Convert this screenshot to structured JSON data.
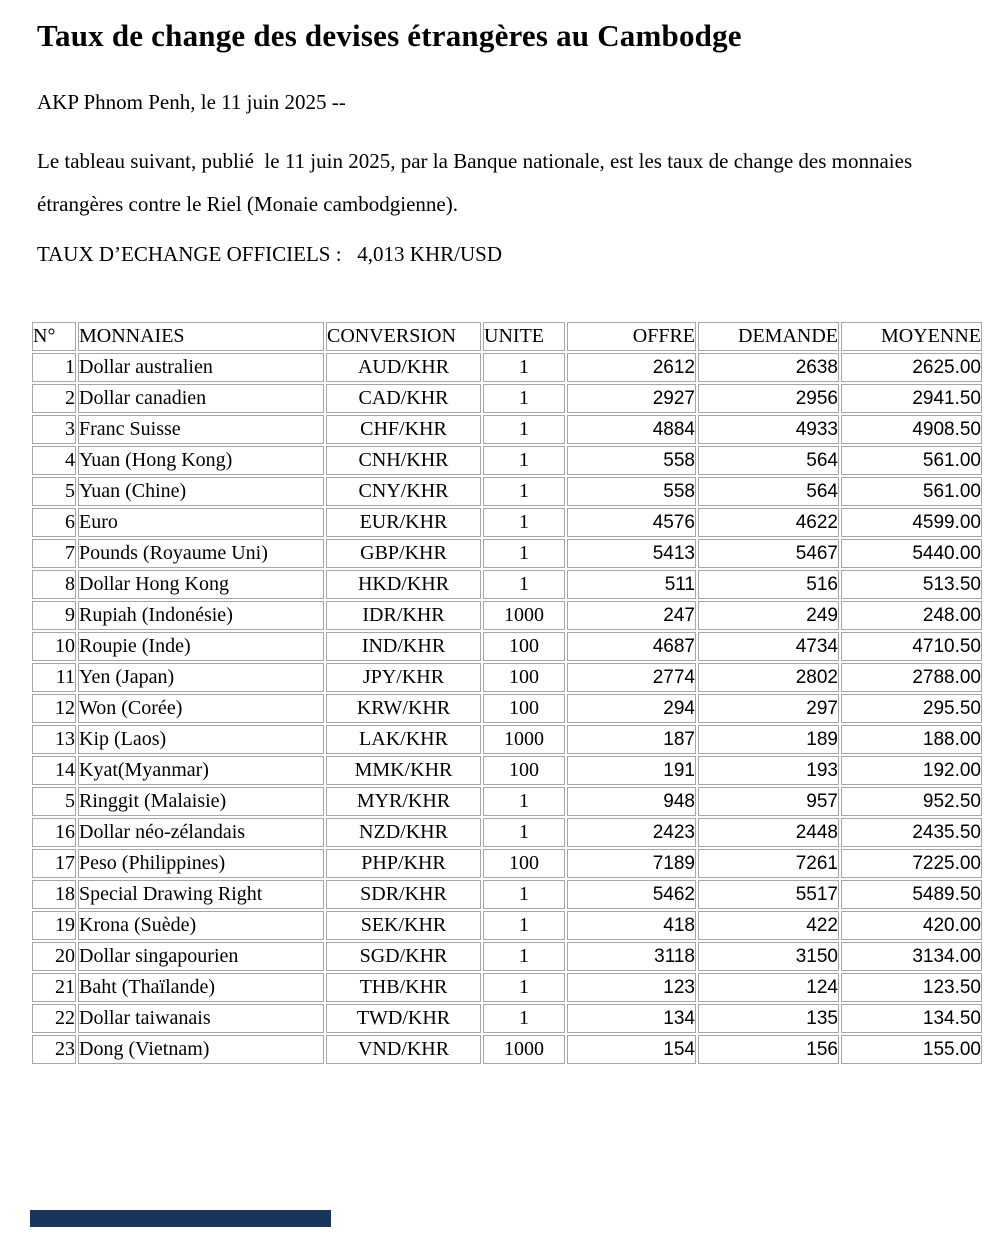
{
  "page": {
    "title": "Taux de change des devises étrangères au Cambodge",
    "byline": "AKP Phnom Penh, le 11 juin 2025 --",
    "intro": "Le tableau suivant, publié  le 11 juin 2025, par la Banque nationale, est les taux de change des monnaies étrangères contre le Riel (Monaie cambodgienne).",
    "official_rates_line": "TAUX D’ECHANGE OFFICIELS :   4,013 KHR/USD"
  },
  "table": {
    "headers": [
      "N°",
      "MONNAIES",
      "CONVERSION",
      "UNITE",
      "OFFRE",
      "DEMANDE",
      "MOYENNE"
    ],
    "rows": [
      [
        "1",
        "Dollar australien",
        "AUD/KHR",
        "1",
        "2612",
        "2638",
        "2625.00"
      ],
      [
        "2",
        "Dollar canadien",
        "CAD/KHR",
        "1",
        "2927",
        "2956",
        "2941.50"
      ],
      [
        "3",
        "Franc Suisse",
        "CHF/KHR",
        "1",
        "4884",
        "4933",
        "4908.50"
      ],
      [
        "4",
        "Yuan (Hong Kong)",
        "CNH/KHR",
        "1",
        "558",
        "564",
        "561.00"
      ],
      [
        "5",
        "Yuan (Chine)",
        "CNY/KHR",
        "1",
        "558",
        "564",
        "561.00"
      ],
      [
        "6",
        "Euro",
        "EUR/KHR",
        "1",
        "4576",
        "4622",
        "4599.00"
      ],
      [
        "7",
        "Pounds (Royaume Uni)",
        "GBP/KHR",
        "1",
        "5413",
        "5467",
        "5440.00"
      ],
      [
        "8",
        "Dollar Hong Kong",
        "HKD/KHR",
        "1",
        "511",
        "516",
        "513.50"
      ],
      [
        "9",
        "Rupiah (Indonésie)",
        "IDR/KHR",
        "1000",
        "247",
        "249",
        "248.00"
      ],
      [
        "10",
        "Roupie (Inde)",
        "IND/KHR",
        "100",
        "4687",
        "4734",
        "4710.50"
      ],
      [
        "11",
        "Yen (Japan)",
        "JPY/KHR",
        "100",
        "2774",
        "2802",
        "2788.00"
      ],
      [
        "12",
        "Won (Corée)",
        "KRW/KHR",
        "100",
        "294",
        "297",
        "295.50"
      ],
      [
        "13",
        "Kip (Laos)",
        "LAK/KHR",
        "1000",
        "187",
        "189",
        "188.00"
      ],
      [
        "14",
        "Kyat(Myanmar)",
        "MMK/KHR",
        "100",
        "191",
        "193",
        "192.00"
      ],
      [
        "5",
        "Ringgit (Malaisie)",
        "MYR/KHR",
        "1",
        "948",
        "957",
        "952.50"
      ],
      [
        "16",
        "Dollar néo-zélandais",
        "NZD/KHR",
        "1",
        "2423",
        "2448",
        "2435.50"
      ],
      [
        "17",
        "Peso (Philippines)",
        "PHP/KHR",
        "100",
        "7189",
        "7261",
        "7225.00"
      ],
      [
        "18",
        "Special Drawing Right",
        "SDR/KHR",
        "1",
        "5462",
        "5517",
        "5489.50"
      ],
      [
        "19",
        "Krona (Suède)",
        "SEK/KHR",
        "1",
        "418",
        "422",
        "420.00"
      ],
      [
        "20",
        "Dollar singapourien",
        "SGD/KHR",
        "1",
        "3118",
        "3150",
        "3134.00"
      ],
      [
        "21",
        "Baht (Thaïlande)",
        "THB/KHR",
        "1",
        "123",
        "124",
        "123.50"
      ],
      [
        "22",
        "Dollar taiwanais",
        "TWD/KHR",
        "1",
        "134",
        "135",
        "134.50"
      ],
      [
        "23",
        "Dong (Vietnam)",
        "VND/KHR",
        "1000",
        "154",
        "156",
        "155.00"
      ]
    ]
  },
  "colors": {
    "table_border": "#a6a6a6",
    "footer_bar": "#17365d",
    "text": "#000000",
    "background": "#ffffff"
  }
}
